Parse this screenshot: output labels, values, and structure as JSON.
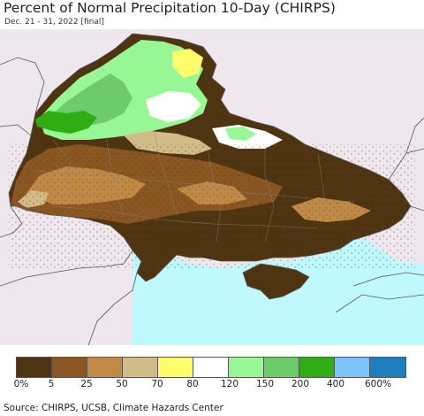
{
  "title": "Percent of Normal Precipitation 10-Day (CHIRPS)",
  "subtitle": "Dec. 21 - 31, 2022 [final]",
  "legend": {
    "colors": [
      "#4e3410",
      "#8a5622",
      "#c08a46",
      "#d1bb86",
      "#fdfc6a",
      "#ffffff",
      "#97f794",
      "#6ecb6c",
      "#2fad12",
      "#7cc3fa",
      "#1f7ebd"
    ],
    "ticks": [
      "0%",
      "5",
      "25",
      "50",
      "70",
      "80",
      "120",
      "150",
      "200",
      "400",
      "600%"
    ]
  },
  "source": "Source: CHIRPS, UCSB, Climate Hazards Center",
  "colors": {
    "sea": "#bff8fd",
    "outside_land": "#eee8ee"
  }
}
